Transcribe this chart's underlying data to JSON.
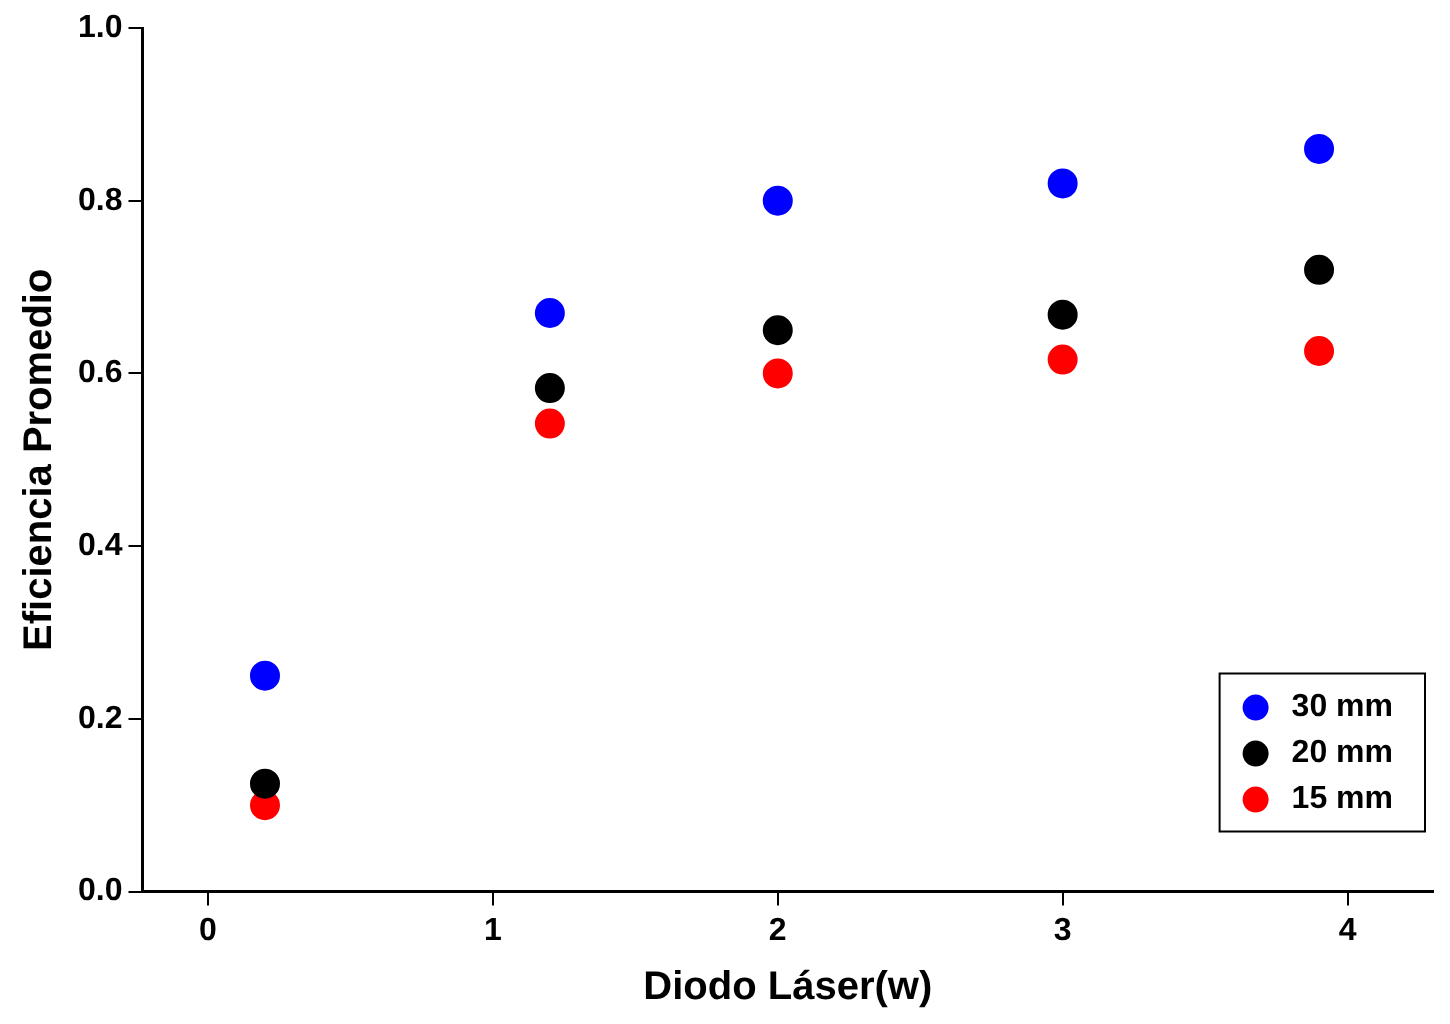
{
  "chart_data": {
    "type": "scatter",
    "xlabel": "Diodo Láser(w)",
    "ylabel": "Eficiencia Promedio",
    "x": [
      0.2,
      1.2,
      2,
      3,
      3.9
    ],
    "series": [
      {
        "name": "30 mm",
        "color": "#0000ff",
        "values": [
          0.25,
          0.67,
          0.8,
          0.82,
          0.86
        ]
      },
      {
        "name": "20 mm",
        "color": "#000000",
        "values": [
          0.125,
          0.583,
          0.65,
          0.668,
          0.72
        ]
      },
      {
        "name": "15 mm",
        "color": "#ff0000",
        "values": [
          0.1,
          0.542,
          0.6,
          0.616,
          0.626
        ]
      }
    ],
    "xlim": [
      -0.23,
      4.3
    ],
    "xticks": [
      0,
      1,
      2,
      3,
      4
    ],
    "ylim": [
      0,
      1
    ],
    "yticks": [
      {
        "value": 0,
        "label": "0.0"
      },
      0.2,
      0.4,
      0.6,
      0.8,
      {
        "value": 1,
        "label": "1.0"
      }
    ],
    "grid": false,
    "legend": "bottom right",
    "marker": "circle"
  }
}
